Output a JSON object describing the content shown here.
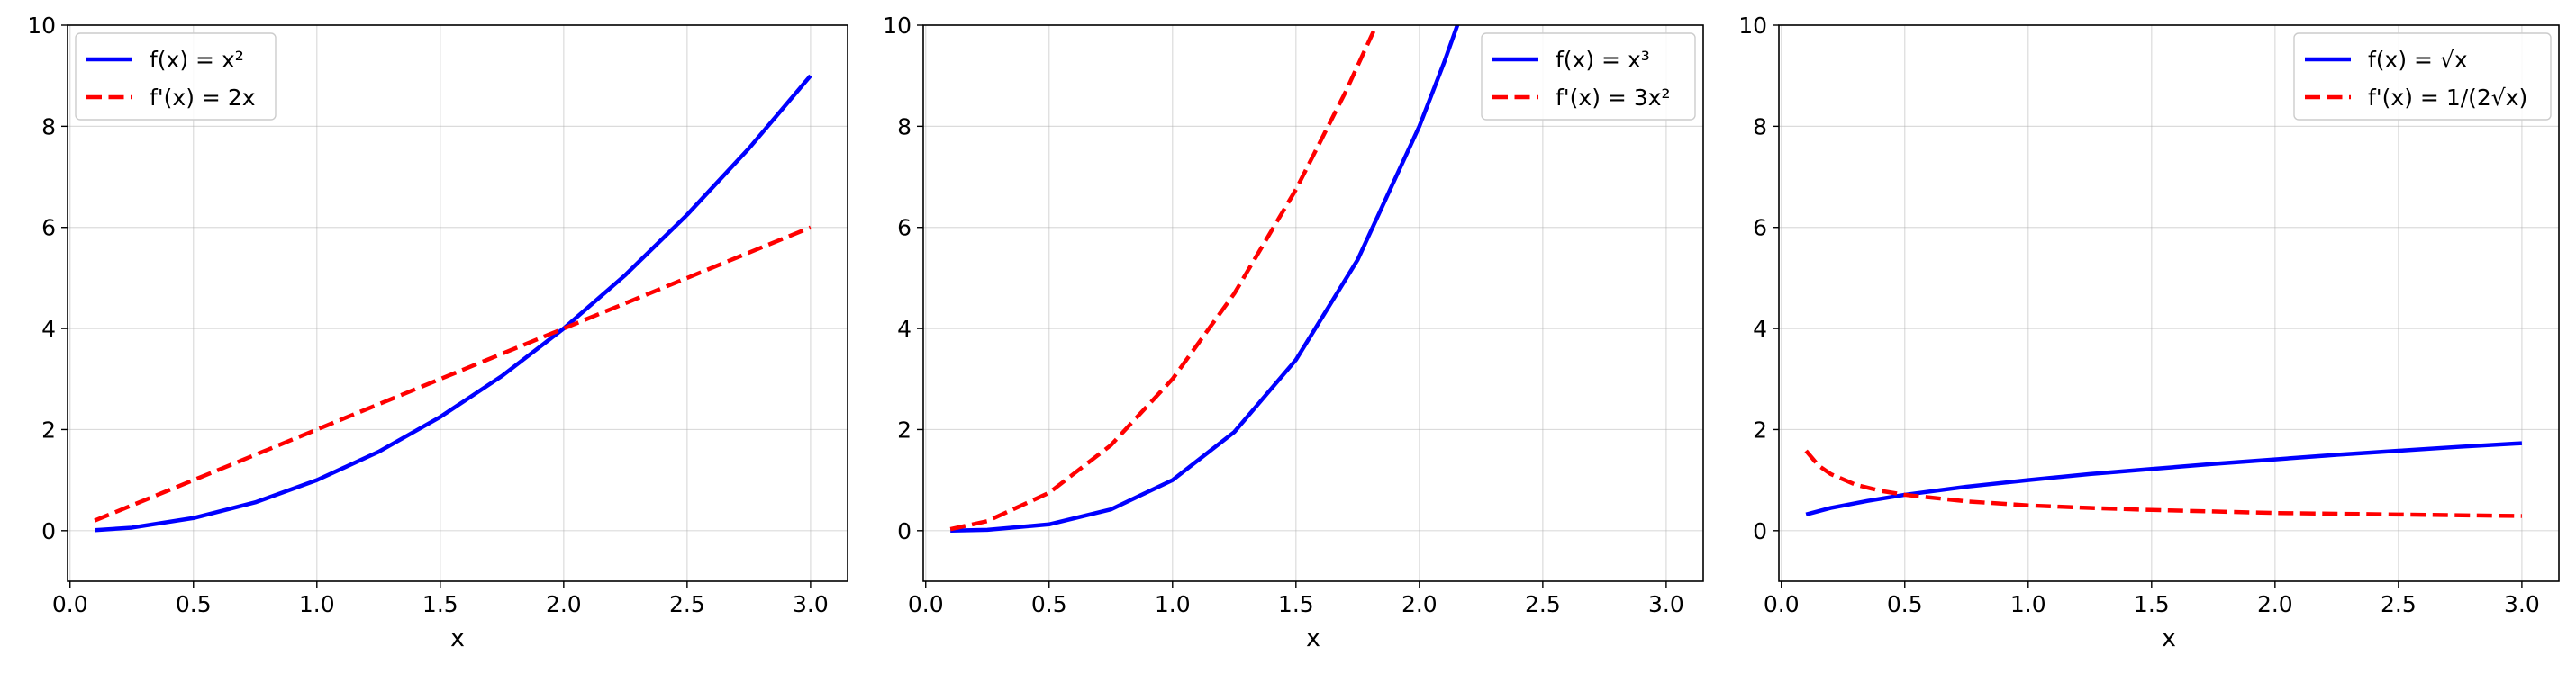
{
  "chart_data": [
    {
      "type": "line",
      "xlabel": "x",
      "ylabel": "",
      "xlim": [
        -0.01,
        3.15
      ],
      "ylim": [
        -1,
        10
      ],
      "xticks": [
        "0.0",
        "0.5",
        "1.0",
        "1.5",
        "2.0",
        "2.5",
        "3.0"
      ],
      "yticks": [
        "0",
        "2",
        "4",
        "6",
        "8",
        "10"
      ],
      "grid": true,
      "legend_position": "top-left",
      "series": [
        {
          "name": "f(x) = x²",
          "color": "#0000ff",
          "style": "solid",
          "x": [
            0.1,
            0.25,
            0.5,
            0.75,
            1.0,
            1.25,
            1.5,
            1.75,
            2.0,
            2.25,
            2.5,
            2.75,
            3.0
          ],
          "y": [
            0.01,
            0.06,
            0.25,
            0.56,
            1.0,
            1.56,
            2.25,
            3.06,
            4.0,
            5.06,
            6.25,
            7.56,
            9.0
          ]
        },
        {
          "name": "f'(x) = 2x",
          "color": "#ff0000",
          "style": "dashed",
          "x": [
            0.1,
            0.5,
            1.0,
            1.5,
            2.0,
            2.5,
            3.0
          ],
          "y": [
            0.2,
            1.0,
            2.0,
            3.0,
            4.0,
            5.0,
            6.0
          ]
        }
      ]
    },
    {
      "type": "line",
      "xlabel": "x",
      "ylabel": "",
      "xlim": [
        -0.01,
        3.15
      ],
      "ylim": [
        -1,
        10
      ],
      "xticks": [
        "0.0",
        "0.5",
        "1.0",
        "1.5",
        "2.0",
        "2.5",
        "3.0"
      ],
      "yticks": [
        "0",
        "2",
        "4",
        "6",
        "8",
        "10"
      ],
      "grid": true,
      "legend_position": "top-right",
      "series": [
        {
          "name": "f(x) = x³",
          "color": "#0000ff",
          "style": "solid",
          "x": [
            0.1,
            0.25,
            0.5,
            0.75,
            1.0,
            1.25,
            1.5,
            1.75,
            2.0,
            2.1,
            2.154
          ],
          "y": [
            0.001,
            0.016,
            0.125,
            0.42,
            1.0,
            1.95,
            3.38,
            5.36,
            8.0,
            9.26,
            10.0
          ]
        },
        {
          "name": "f'(x) = 3x²",
          "color": "#ff0000",
          "style": "dashed",
          "x": [
            0.1,
            0.25,
            0.5,
            0.75,
            1.0,
            1.25,
            1.5,
            1.7,
            1.826
          ],
          "y": [
            0.03,
            0.19,
            0.75,
            1.69,
            3.0,
            4.69,
            6.75,
            8.67,
            10.0
          ]
        }
      ]
    },
    {
      "type": "line",
      "xlabel": "x",
      "ylabel": "",
      "xlim": [
        -0.01,
        3.15
      ],
      "ylim": [
        -1,
        10
      ],
      "xticks": [
        "0.0",
        "0.5",
        "1.0",
        "1.5",
        "2.0",
        "2.5",
        "3.0"
      ],
      "yticks": [
        "0",
        "2",
        "4",
        "6",
        "8",
        "10"
      ],
      "grid": true,
      "legend_position": "top-right",
      "series": [
        {
          "name": "f(x) = √x",
          "color": "#0000ff",
          "style": "solid",
          "x": [
            0.1,
            0.2,
            0.35,
            0.5,
            0.75,
            1.0,
            1.25,
            1.5,
            1.75,
            2.0,
            2.25,
            2.5,
            2.75,
            3.0
          ],
          "y": [
            0.32,
            0.45,
            0.59,
            0.71,
            0.87,
            1.0,
            1.12,
            1.22,
            1.32,
            1.41,
            1.5,
            1.58,
            1.66,
            1.73
          ]
        },
        {
          "name": "f'(x) = 1/(2√x)",
          "color": "#ff0000",
          "style": "dashed",
          "x": [
            0.1,
            0.15,
            0.2,
            0.3,
            0.4,
            0.5,
            0.75,
            1.0,
            1.25,
            1.5,
            2.0,
            2.5,
            3.0
          ],
          "y": [
            1.58,
            1.29,
            1.12,
            0.91,
            0.79,
            0.71,
            0.58,
            0.5,
            0.45,
            0.41,
            0.35,
            0.32,
            0.29
          ]
        }
      ]
    }
  ]
}
